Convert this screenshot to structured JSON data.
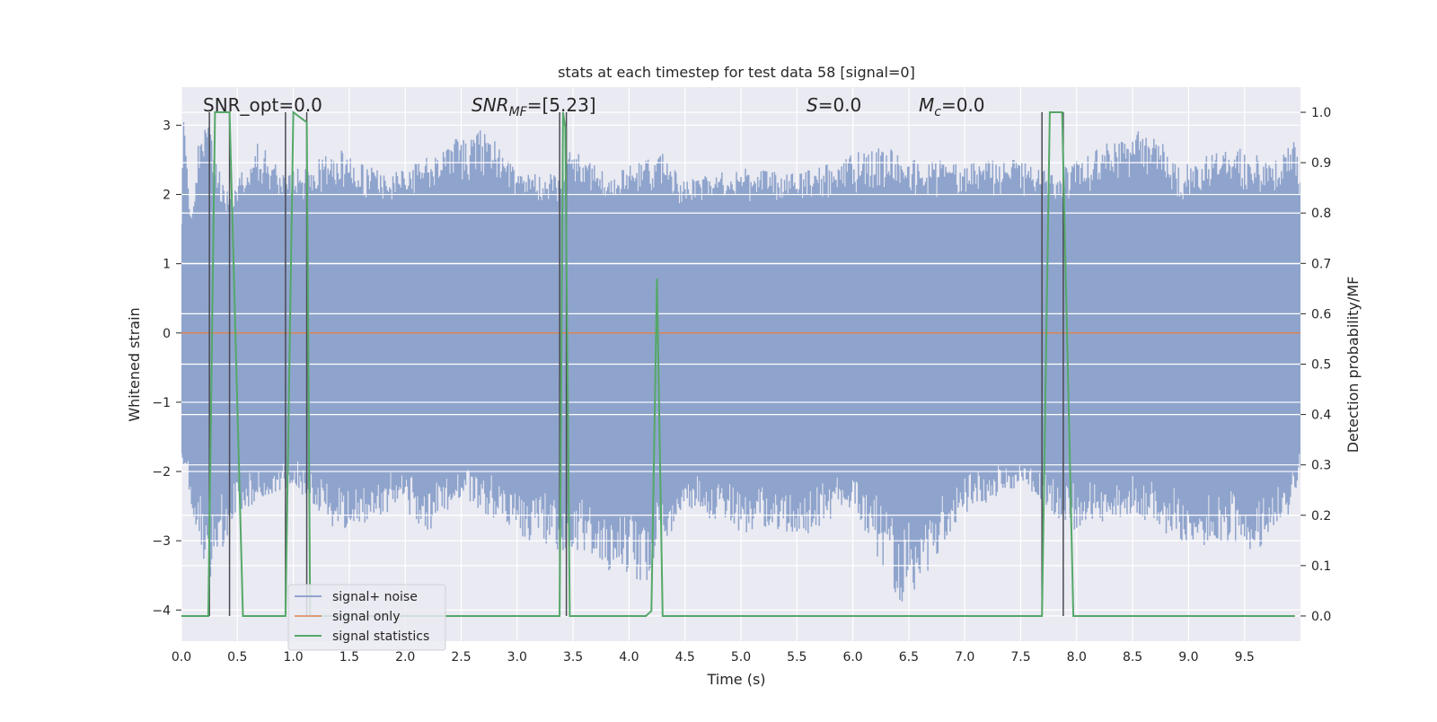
{
  "chart_data": {
    "type": "line",
    "title": "stats at each timestep for test data 58 [signal=0]",
    "xlabel": "Time (s)",
    "ylabel": "Whitened strain",
    "y2label": "Detection probability/MF",
    "xlim": [
      0.0,
      10.0
    ],
    "ylim": [
      -4.45,
      3.55
    ],
    "y2lim": [
      -0.05,
      1.05
    ],
    "xticks": [
      "0.0",
      "0.5",
      "1.0",
      "1.5",
      "2.0",
      "2.5",
      "3.0",
      "3.5",
      "4.0",
      "4.5",
      "5.0",
      "5.5",
      "6.0",
      "6.5",
      "7.0",
      "7.5",
      "8.0",
      "8.5",
      "9.0",
      "9.5"
    ],
    "xtick_values": [
      0,
      0.5,
      1,
      1.5,
      2,
      2.5,
      3,
      3.5,
      4,
      4.5,
      5,
      5.5,
      6,
      6.5,
      7,
      7.5,
      8,
      8.5,
      9,
      9.5
    ],
    "yticks": [
      "−4",
      "−3",
      "−2",
      "−1",
      "0",
      "1",
      "2",
      "3"
    ],
    "ytick_values": [
      -4,
      -3,
      -2,
      -1,
      0,
      1,
      2,
      3
    ],
    "y2ticks": [
      "0.0",
      "0.1",
      "0.2",
      "0.3",
      "0.4",
      "0.5",
      "0.6",
      "0.7",
      "0.8",
      "0.9",
      "1.0"
    ],
    "y2tick_values": [
      0,
      0.1,
      0.2,
      0.3,
      0.4,
      0.5,
      0.6,
      0.7,
      0.8,
      0.9,
      1.0
    ],
    "grid": true,
    "legend_position": "bottom-left",
    "annotations": {
      "snr_opt": "SNR_opt=0.0",
      "snr_mf_prefix": "SNR",
      "snr_mf_sub": "MF",
      "snr_mf_value": "=[5.23]",
      "s_prefix": "S",
      "s_value": "=0.0",
      "mc_prefix": "M",
      "mc_sub": "c",
      "mc_value": "=0.0"
    },
    "series": [
      {
        "name": "signal+ noise",
        "color": "#8fa4cc",
        "description_of_values": "whitened noise, roughly within ±2 with spikes up to 3.2 and down to −4.0",
        "upper_envelope": [
          [
            0.0,
            1.8
          ],
          [
            0.02,
            3.1
          ],
          [
            0.05,
            2.8
          ],
          [
            0.08,
            1.7
          ],
          [
            0.1,
            1.9
          ],
          [
            0.15,
            2.8
          ],
          [
            0.25,
            3.1
          ],
          [
            0.3,
            2.5
          ],
          [
            0.45,
            1.9
          ],
          [
            0.5,
            2.2
          ],
          [
            0.7,
            2.8
          ],
          [
            0.9,
            2.3
          ],
          [
            1.1,
            2.4
          ],
          [
            1.4,
            2.7
          ],
          [
            1.5,
            2.6
          ],
          [
            1.8,
            2.3
          ],
          [
            2.05,
            2.4
          ],
          [
            2.3,
            2.7
          ],
          [
            2.75,
            3.0
          ],
          [
            3.0,
            2.3
          ],
          [
            3.4,
            2.3
          ],
          [
            3.45,
            2.7
          ],
          [
            3.8,
            2.3
          ],
          [
            4.3,
            2.6
          ],
          [
            4.5,
            2.2
          ],
          [
            5.0,
            2.4
          ],
          [
            5.5,
            2.3
          ],
          [
            6.0,
            2.6
          ],
          [
            6.3,
            2.7
          ],
          [
            6.5,
            2.5
          ],
          [
            7.0,
            2.5
          ],
          [
            7.5,
            2.5
          ],
          [
            7.8,
            2.3
          ],
          [
            8.1,
            2.6
          ],
          [
            8.5,
            3.0
          ],
          [
            8.8,
            2.7
          ],
          [
            8.9,
            2.4
          ],
          [
            9.4,
            2.7
          ],
          [
            9.8,
            2.5
          ],
          [
            9.95,
            2.8
          ],
          [
            10.0,
            2.2
          ]
        ],
        "lower_envelope": [
          [
            0.0,
            -1.8
          ],
          [
            0.1,
            -2.6
          ],
          [
            0.25,
            -3.6
          ],
          [
            0.5,
            -2.6
          ],
          [
            0.8,
            -2.4
          ],
          [
            1.0,
            -2.2
          ],
          [
            1.4,
            -2.9
          ],
          [
            1.7,
            -2.7
          ],
          [
            2.0,
            -2.5
          ],
          [
            2.15,
            -3.0
          ],
          [
            2.5,
            -2.4
          ],
          [
            3.1,
            -3.0
          ],
          [
            3.5,
            -3.2
          ],
          [
            3.75,
            -3.4
          ],
          [
            4.15,
            -3.6
          ],
          [
            4.5,
            -2.5
          ],
          [
            5.0,
            -2.9
          ],
          [
            5.6,
            -2.9
          ],
          [
            6.0,
            -2.5
          ],
          [
            6.45,
            -4.0
          ],
          [
            7.0,
            -2.6
          ],
          [
            7.3,
            -2.4
          ],
          [
            7.5,
            -2.2
          ],
          [
            8.0,
            -2.9
          ],
          [
            8.5,
            -2.6
          ],
          [
            9.0,
            -3.1
          ],
          [
            9.4,
            -3.0
          ],
          [
            9.6,
            -3.2
          ],
          [
            9.9,
            -2.6
          ],
          [
            10.0,
            -2.0
          ]
        ]
      },
      {
        "name": "signal only",
        "color": "#dd8452",
        "x": [
          0.0,
          10.0
        ],
        "y": [
          0.0,
          0.0
        ]
      },
      {
        "name": "signal statistics",
        "color": "#55a868",
        "axis": "right",
        "x": [
          0.0,
          0.05,
          0.24,
          0.3,
          0.43,
          0.55,
          0.57,
          0.93,
          1.0,
          1.12,
          1.15,
          1.22,
          3.38,
          3.41,
          3.43,
          3.47,
          4.15,
          4.2,
          4.25,
          4.3,
          4.35,
          7.69,
          7.76,
          7.87,
          7.97,
          7.98,
          9.95
        ],
        "y": [
          0.0,
          0.0,
          0.0,
          1.0,
          1.0,
          0.0,
          0.0,
          0.0,
          1.0,
          0.98,
          0.0,
          0.0,
          0.0,
          1.0,
          0.97,
          0.0,
          0.0,
          0.01,
          0.67,
          0.0,
          0.0,
          0.0,
          1.0,
          1.0,
          0.0,
          0.0,
          0.0
        ]
      }
    ],
    "vertical_markers": {
      "color": "#4a4a52",
      "lines": [
        [
          0.25,
          0.0,
          1.0
        ],
        [
          0.43,
          0.0,
          1.0
        ],
        [
          0.93,
          0.0,
          1.0
        ],
        [
          1.12,
          0.0,
          1.0
        ],
        [
          3.38,
          0.0,
          1.0
        ],
        [
          3.44,
          0.0,
          1.0
        ],
        [
          7.69,
          0.0,
          1.0
        ],
        [
          7.88,
          0.0,
          1.0
        ]
      ]
    }
  }
}
